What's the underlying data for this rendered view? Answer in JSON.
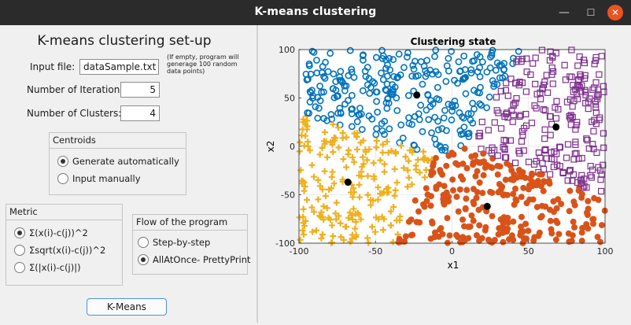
{
  "window": {
    "title": "K-means clustering"
  },
  "setup": {
    "title": "K-means clustering set-up",
    "input_file_label": "Input file:",
    "input_file_value": "dataSample.txt",
    "input_file_note": "(If empty, program will generage 100 random data points)",
    "iterations_label": "Number of Iterations:",
    "iterations_value": "5",
    "clusters_label": "Number of Clusters:",
    "clusters_value": "4"
  },
  "centroids": {
    "title": "Centroids",
    "options": [
      "Generate automatically",
      "Input manually"
    ],
    "selected": 0
  },
  "metric": {
    "title": "Metric",
    "options": [
      "Σ(x(i)-c(j))^2",
      "Σsqrt(x(i)-c(j))^2",
      "Σ(|x(i)-c(j)|)"
    ],
    "selected": 0
  },
  "flow": {
    "title": "Flow of the program",
    "options": [
      "Step-by-step",
      "AllAtOnce- PrettyPrint"
    ],
    "selected": 1
  },
  "run_button": "K-Means",
  "colors": {
    "cluster_blue": "#0072bd",
    "cluster_orange": "#d95319",
    "cluster_yellow": "#edb120",
    "cluster_purple": "#7e2f8e",
    "centroid": "#000000"
  },
  "chart_data": {
    "type": "scatter",
    "title": "Clustering state",
    "xlabel": "x1",
    "ylabel": "x2",
    "xlim": [
      -100,
      100
    ],
    "ylim": [
      -100,
      100
    ],
    "xticks": [
      "-100",
      "-50",
      "0",
      "50",
      "100"
    ],
    "yticks": [
      "100",
      "50",
      "0",
      "-50",
      "-100"
    ],
    "grid": true,
    "centroids": [
      [
        -23,
        53
      ],
      [
        68,
        20
      ],
      [
        -68,
        -37
      ],
      [
        23,
        -62
      ]
    ],
    "cluster_regions": [
      {
        "marker": "o",
        "color": "#0072bd",
        "centroid": [
          -23,
          53
        ],
        "x": [
          -100,
          22
        ],
        "y": [
          -5,
          100
        ]
      },
      {
        "marker": "s",
        "color": "#7e2f8e",
        "centroid": [
          68,
          20
        ],
        "x": [
          22,
          100
        ],
        "y": [
          -55,
          100
        ]
      },
      {
        "marker": "+",
        "color": "#edb120",
        "centroid": [
          -68,
          -37
        ],
        "x": [
          -100,
          -25
        ],
        "y": [
          -100,
          30
        ]
      },
      {
        "marker": "filled-o",
        "color": "#d95319",
        "centroid": [
          23,
          -62
        ],
        "x": [
          -40,
          100
        ],
        "y": [
          -100,
          -10
        ]
      }
    ]
  }
}
